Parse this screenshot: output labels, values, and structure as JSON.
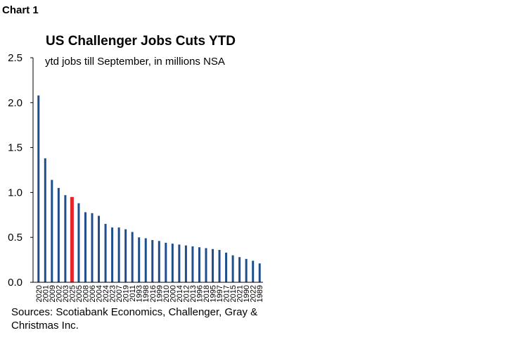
{
  "header": {
    "label": "Chart 1"
  },
  "chart_data": {
    "type": "bar",
    "title": "US Challenger  Jobs Cuts YTD",
    "subtitle": "ytd jobs till September, in millions NSA",
    "xlabel": "",
    "ylabel": "",
    "ylim": [
      0,
      2.5
    ],
    "yticks": [
      "2.5",
      "2.0",
      "1.5",
      "1.0",
      "0.5",
      "0.0"
    ],
    "grid": false,
    "bar_color": "#1f4e8c",
    "highlight_color": "#e8232a",
    "highlight_category": "2025",
    "categories": [
      "2020",
      "2001",
      "2009",
      "2002",
      "2003",
      "2025",
      "2005",
      "2008",
      "2006",
      "2004",
      "2024",
      "2023",
      "2007",
      "2019",
      "2011",
      "1993",
      "1998",
      "2016",
      "1999",
      "2010",
      "2000",
      "2014",
      "2012",
      "2013",
      "1996",
      "2018",
      "1995",
      "1997",
      "2017",
      "2015",
      "2021",
      "1990",
      "2022",
      "1989"
    ],
    "values": [
      2.08,
      1.38,
      1.14,
      1.05,
      0.97,
      0.95,
      0.88,
      0.78,
      0.77,
      0.74,
      0.65,
      0.61,
      0.61,
      0.59,
      0.56,
      0.5,
      0.49,
      0.47,
      0.46,
      0.44,
      0.43,
      0.42,
      0.41,
      0.4,
      0.39,
      0.38,
      0.37,
      0.36,
      0.33,
      0.3,
      0.28,
      0.26,
      0.24,
      0.21
    ]
  },
  "footer": {
    "source": "Sources: Scotiabank Economics, Challenger, Gray & Christmas Inc."
  }
}
